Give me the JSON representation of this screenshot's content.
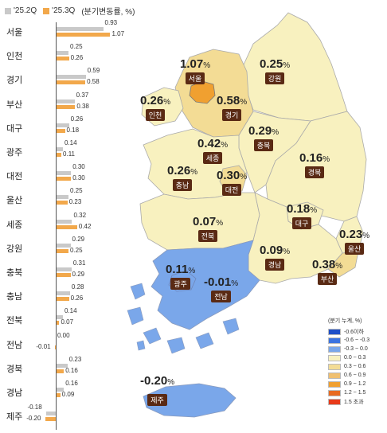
{
  "legend": {
    "series1_label": "'25.2Q",
    "series2_label": "'25.3Q",
    "unit_label": "(분기변동률, %)",
    "series1_color": "#c9c9c9",
    "series2_color": "#f2a84b"
  },
  "bars": [
    {
      "name": "서울",
      "q2": 0.93,
      "q3": 1.07,
      "q2_label": "0.93",
      "q3_label": "1.07"
    },
    {
      "name": "인천",
      "q2": 0.25,
      "q3": 0.26,
      "q2_label": "0.25",
      "q3_label": "0.26"
    },
    {
      "name": "경기",
      "q2": 0.59,
      "q3": 0.58,
      "q2_label": "0.59",
      "q3_label": "0.58"
    },
    {
      "name": "부산",
      "q2": 0.37,
      "q3": 0.38,
      "q2_label": "0.37",
      "q3_label": "0.38"
    },
    {
      "name": "대구",
      "q2": 0.26,
      "q3": 0.18,
      "q2_label": "0.26",
      "q3_label": "0.18"
    },
    {
      "name": "광주",
      "q2": 0.14,
      "q3": 0.11,
      "q2_label": "0.14",
      "q3_label": "0.11"
    },
    {
      "name": "대전",
      "q2": 0.3,
      "q3": 0.3,
      "q2_label": "0.30",
      "q3_label": "0.30"
    },
    {
      "name": "울산",
      "q2": 0.25,
      "q3": 0.23,
      "q2_label": "0.25",
      "q3_label": "0.23"
    },
    {
      "name": "세종",
      "q2": 0.32,
      "q3": 0.42,
      "q2_label": "0.32",
      "q3_label": "0.42"
    },
    {
      "name": "강원",
      "q2": 0.29,
      "q3": 0.25,
      "q2_label": "0.29",
      "q3_label": "0.25"
    },
    {
      "name": "충북",
      "q2": 0.31,
      "q3": 0.29,
      "q2_label": "0.31",
      "q3_label": "0.29"
    },
    {
      "name": "충남",
      "q2": 0.28,
      "q3": 0.26,
      "q2_label": "0.28",
      "q3_label": "0.26"
    },
    {
      "name": "전북",
      "q2": 0.14,
      "q3": 0.07,
      "q2_label": "0.14",
      "q3_label": "0.07"
    },
    {
      "name": "전남",
      "q2": 0.0,
      "q3": -0.01,
      "q2_label": "0.00",
      "q3_label": "-0.01"
    },
    {
      "name": "경북",
      "q2": 0.23,
      "q3": 0.16,
      "q2_label": "0.23",
      "q3_label": "0.16"
    },
    {
      "name": "경남",
      "q2": 0.16,
      "q3": 0.09,
      "q2_label": "0.16",
      "q3_label": "0.09"
    },
    {
      "name": "제주",
      "q2": -0.18,
      "q3": -0.2,
      "q2_label": "-0.18",
      "q3_label": "-0.20"
    }
  ],
  "regions": [
    {
      "key": "seoul",
      "name": "서울",
      "value": "1.07"
    },
    {
      "key": "incheon",
      "name": "인천",
      "value": "0.26"
    },
    {
      "key": "gyeonggi",
      "name": "경기",
      "value": "0.58"
    },
    {
      "key": "gangwon",
      "name": "강원",
      "value": "0.25"
    },
    {
      "key": "chungbuk",
      "name": "충북",
      "value": "0.29"
    },
    {
      "key": "sejong",
      "name": "세종",
      "value": "0.42"
    },
    {
      "key": "chungnam",
      "name": "충남",
      "value": "0.26"
    },
    {
      "key": "daejeon",
      "name": "대전",
      "value": "0.30"
    },
    {
      "key": "gyeongbuk",
      "name": "경북",
      "value": "0.16"
    },
    {
      "key": "daegu",
      "name": "대구",
      "value": "0.18"
    },
    {
      "key": "jeonbuk",
      "name": "전북",
      "value": "0.07"
    },
    {
      "key": "ulsan",
      "name": "울산",
      "value": "0.23"
    },
    {
      "key": "gyeongnam",
      "name": "경남",
      "value": "0.09"
    },
    {
      "key": "busan",
      "name": "부산",
      "value": "0.38"
    },
    {
      "key": "gwangju",
      "name": "광주",
      "value": "0.11"
    },
    {
      "key": "jeonnam",
      "name": "전남",
      "value": "-0.01"
    },
    {
      "key": "jeju",
      "name": "제주",
      "value": "-0.20"
    }
  ],
  "percent_sign": "%",
  "colors": {
    "light_yellow": "#f8f1bf",
    "mid_yellow": "#f3dc95",
    "orange_region": "#f0c070",
    "seoul_orange": "#f0a030",
    "negative_blue": "#7aa7ea",
    "label_bg": "#5a2a14"
  },
  "scale": {
    "title": "(분기 누계, %)",
    "items": [
      {
        "label": "-0.6이하",
        "color": "#1e4fc8"
      },
      {
        "label": "-0.6 ~ -0.3",
        "color": "#3b73e0"
      },
      {
        "label": "-0.3 ~ 0.0",
        "color": "#7aa7ea"
      },
      {
        "label": "0.0 ~ 0.3",
        "color": "#f8f1bf"
      },
      {
        "label": "0.3 ~ 0.6",
        "color": "#f3dc95"
      },
      {
        "label": "0.6 ~ 0.9",
        "color": "#f0c070"
      },
      {
        "label": "0.9 ~ 1.2",
        "color": "#f0a030"
      },
      {
        "label": "1.2 ~ 1.5",
        "color": "#e86a20"
      },
      {
        "label": "1.5 초과",
        "color": "#e83a1a"
      }
    ]
  }
}
